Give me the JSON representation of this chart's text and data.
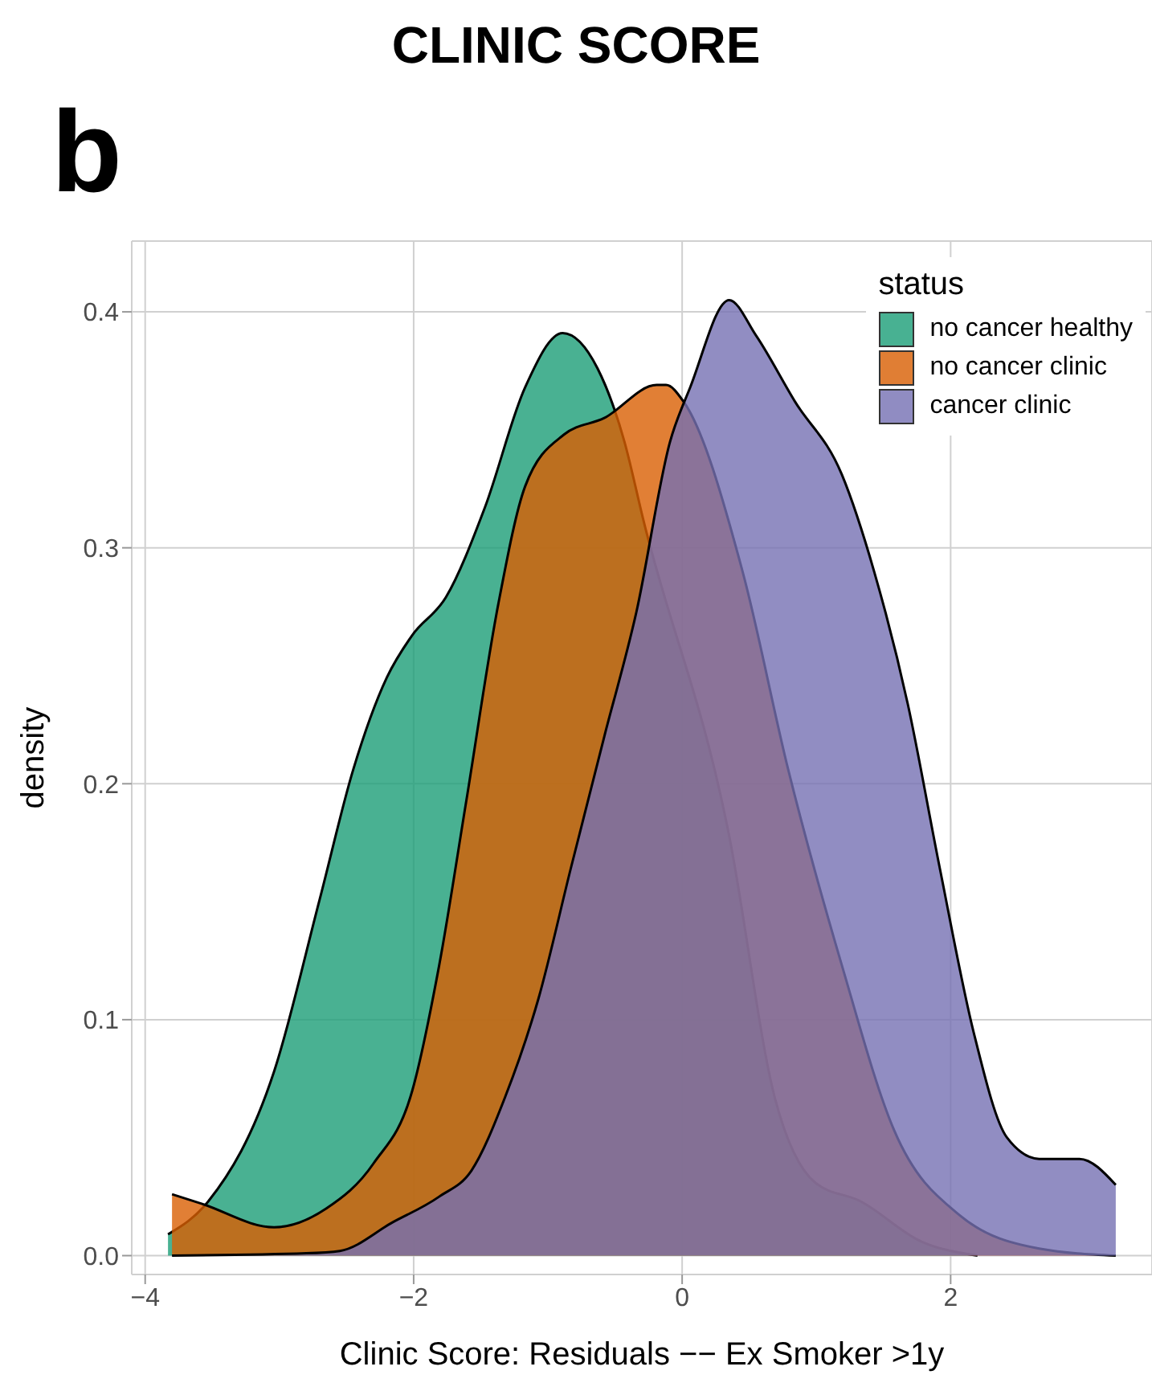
{
  "chart_data": {
    "type": "area",
    "title": "CLINIC SCORE",
    "annotations": [
      "b"
    ],
    "xlabel": "Clinic Score: Residuals  −− Ex Smoker >1y",
    "ylabel": "density",
    "legend_title": "status",
    "legend": "top right",
    "grid": true,
    "xlim": [
      -4.1,
      3.5
    ],
    "xticks": [
      {
        "value": -4,
        "label": "−4"
      },
      {
        "value": -2,
        "label": "−2"
      },
      0,
      2
    ],
    "ylim": [
      -0.008,
      0.43
    ],
    "yticks": [
      {
        "value": 0,
        "label": "0.0"
      },
      0.1,
      0.2,
      0.3,
      0.4
    ],
    "series": [
      {
        "name": "no cancer healthy",
        "color": "#1b9e77",
        "x": [
          -3.83,
          -3.53,
          -3.04,
          -2.7,
          -2.45,
          -2.2,
          -2.01,
          -1.76,
          -1.47,
          -1.17,
          -0.89,
          -0.63,
          -0.43,
          -0.29,
          0.35,
          0.69,
          0.99,
          1.33,
          1.78,
          2.2
        ],
        "values": [
          0.009,
          0.023,
          0.078,
          0.151,
          0.206,
          0.245,
          0.263,
          0.279,
          0.317,
          0.368,
          0.391,
          0.376,
          0.345,
          0.312,
          0.178,
          0.067,
          0.031,
          0.023,
          0.006,
          0
        ]
      },
      {
        "name": "no cancer clinic",
        "color": "#d95f02",
        "x": [
          -3.8,
          -3.58,
          -3.04,
          -2.65,
          -2.3,
          -2.01,
          -1.81,
          -1.61,
          -1.37,
          -1.17,
          -0.88,
          -0.58,
          -0.19,
          -0.12,
          0.01,
          0.45,
          0.79,
          1.19,
          1.58,
          2.07,
          2.66,
          3.23
        ],
        "values": [
          0.026,
          0.022,
          0.012,
          0.02,
          0.039,
          0.07,
          0.123,
          0.192,
          0.276,
          0.326,
          0.348,
          0.355,
          0.369,
          0.369,
          0.362,
          0.29,
          0.206,
          0.123,
          0.053,
          0.017,
          0.003,
          0
        ]
      },
      {
        "name": "cancer clinic",
        "color": "#7570b3",
        "x": [
          -3.8,
          -2.8,
          -2.55,
          -2.16,
          -1.81,
          -1.57,
          -1.32,
          -1.07,
          -0.83,
          -0.58,
          -0.34,
          -0.09,
          0.06,
          0.35,
          0.55,
          0.84,
          1.19,
          1.43,
          1.68,
          1.92,
          2.17,
          2.42,
          2.66,
          2.96,
          3.23
        ],
        "values": [
          0,
          0.001,
          0.002,
          0.014,
          0.025,
          0.036,
          0.067,
          0.109,
          0.164,
          0.22,
          0.273,
          0.345,
          0.368,
          0.405,
          0.39,
          0.362,
          0.331,
          0.29,
          0.234,
          0.164,
          0.095,
          0.05,
          0.041,
          0.041,
          0.03
        ]
      }
    ]
  }
}
